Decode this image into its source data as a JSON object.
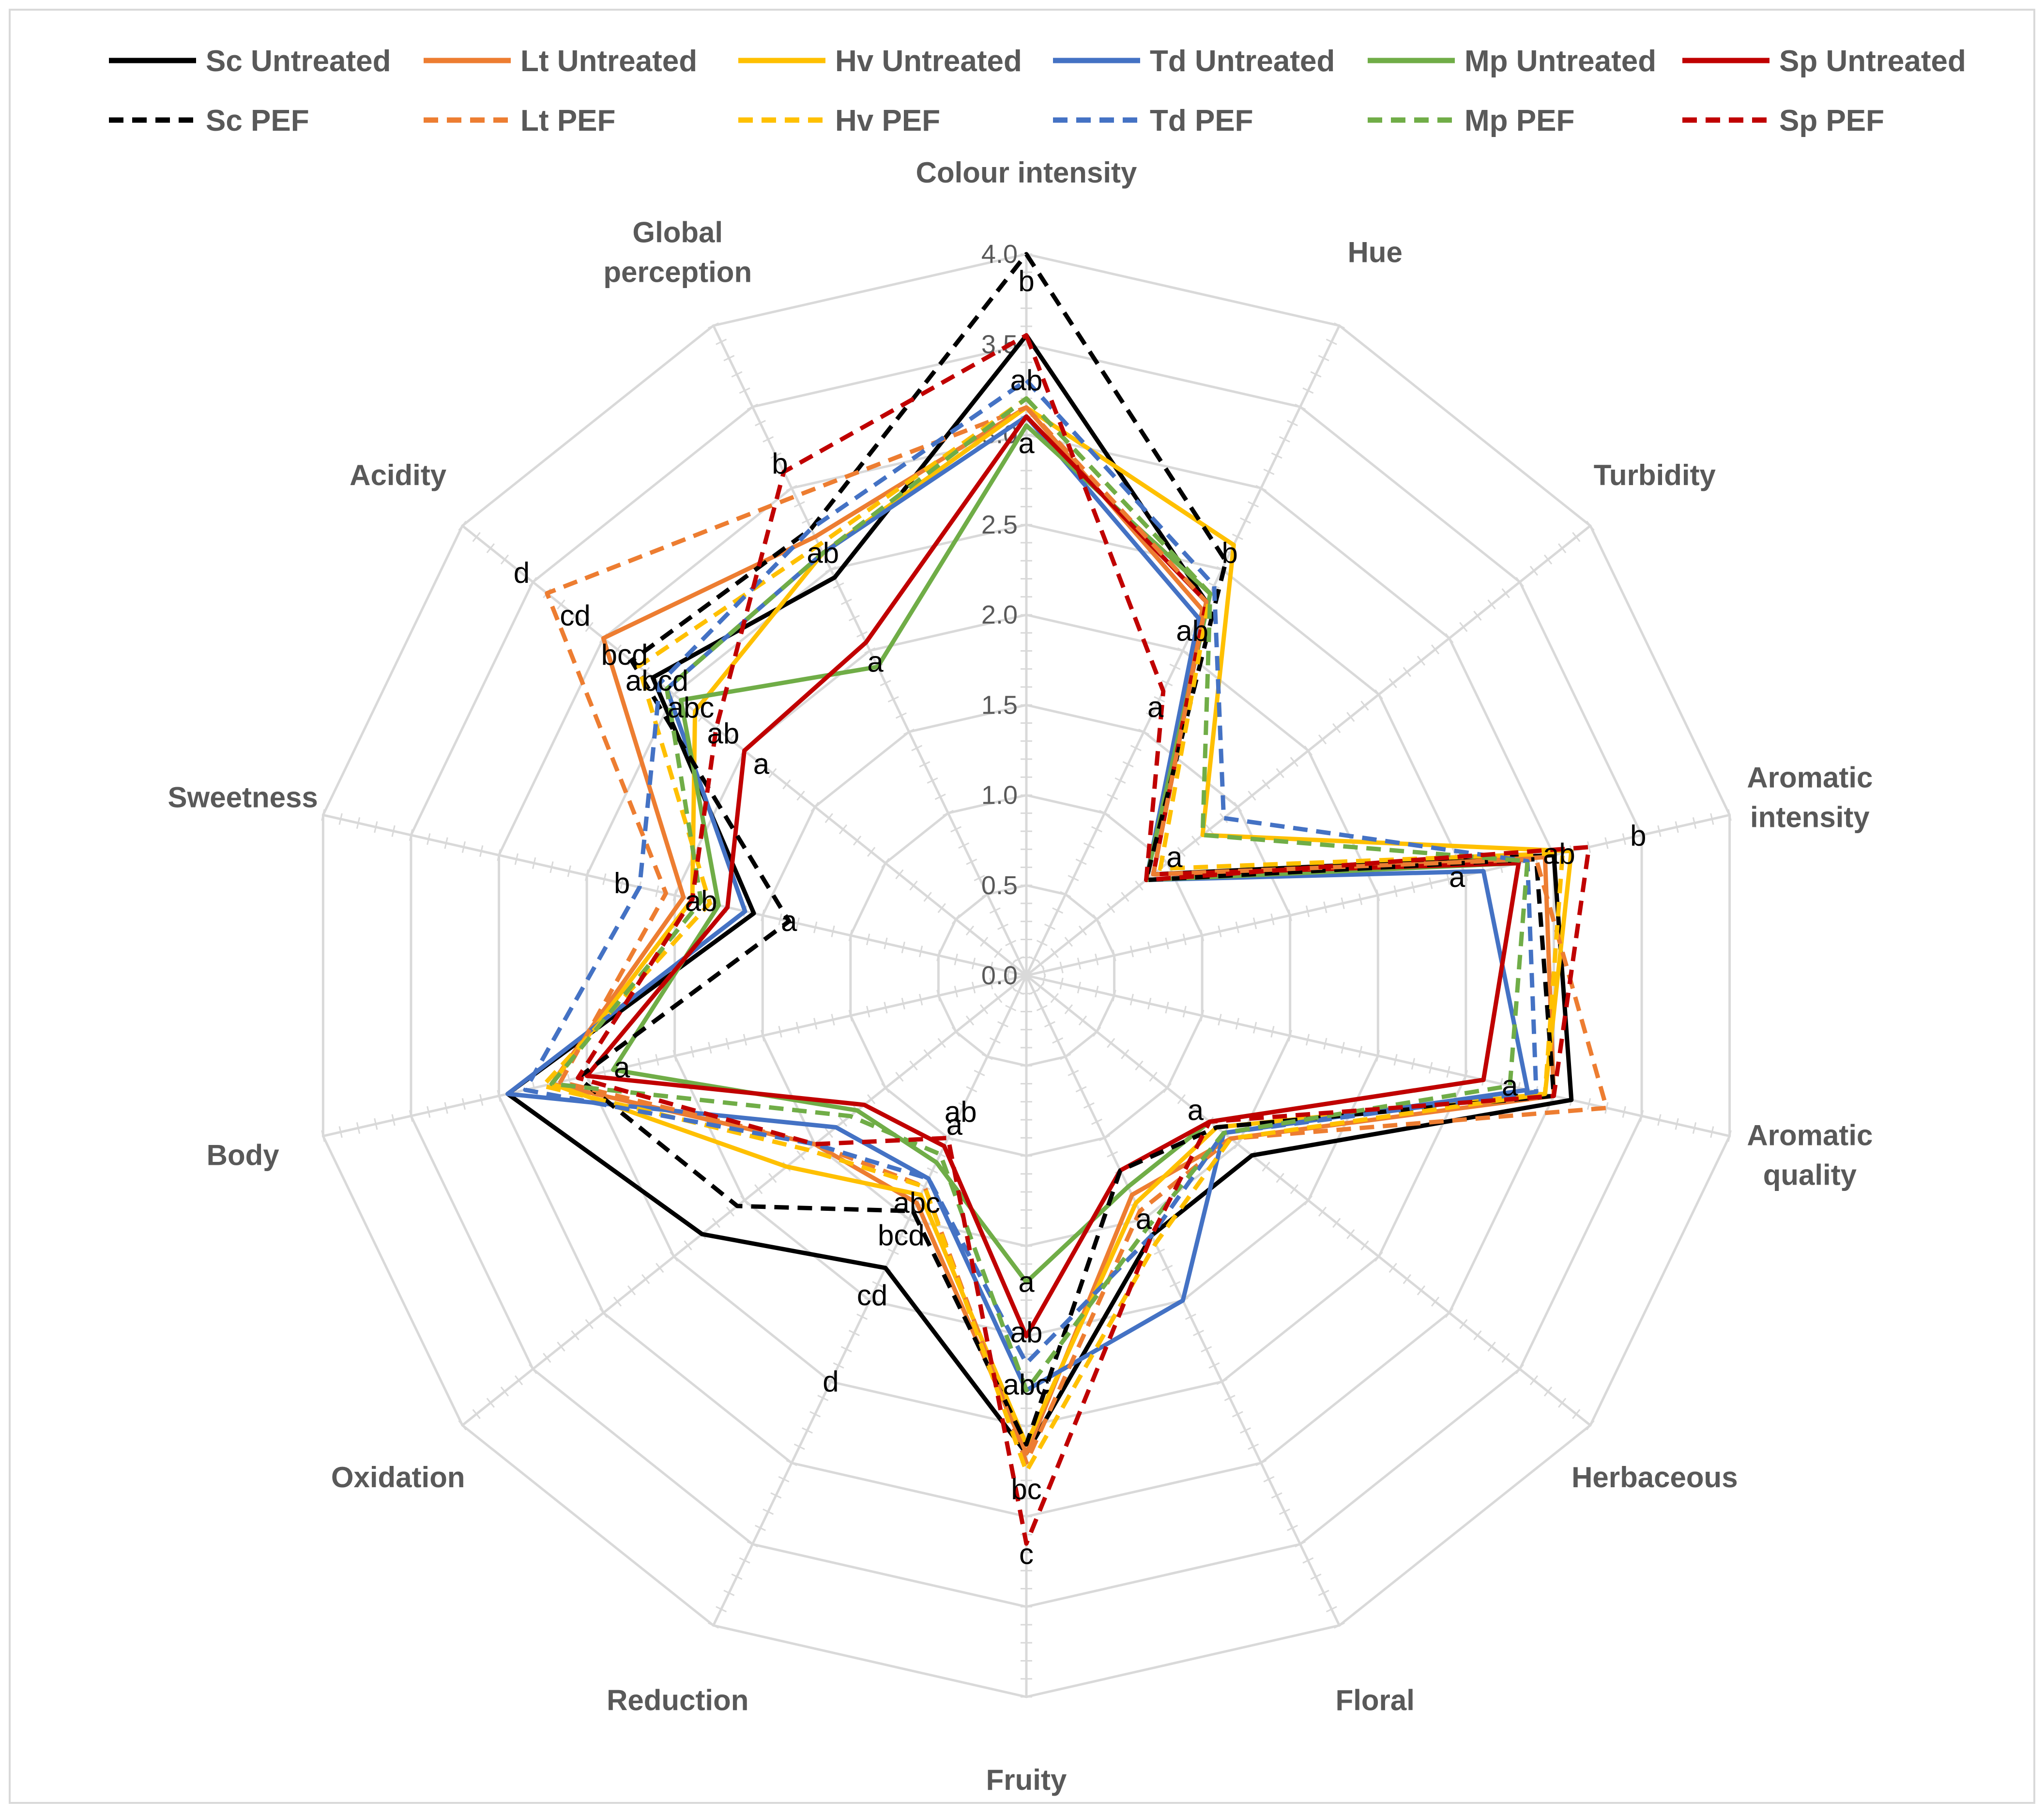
{
  "chart_data": {
    "type": "radar",
    "rlim": [
      0,
      4.0
    ],
    "ticks": [
      "0.0",
      "0.5",
      "1.0",
      "1.5",
      "2.0",
      "2.5",
      "3.0",
      "3.5",
      "4.0"
    ],
    "grid": true,
    "legend_position": "top",
    "axes": [
      "Colour intensity",
      "Hue",
      "Turbidity",
      "Aromatic intensity",
      "Aromatic quality",
      "Herbaceous",
      "Floral",
      "Fruity",
      "Reduction",
      "Oxidation",
      "Body",
      "Sweetness",
      "Acidity",
      "Global perception"
    ],
    "axes_lines": [
      [
        "Colour intensity"
      ],
      [
        "Hue"
      ],
      [
        "Turbidity"
      ],
      [
        "Aromatic",
        "intensity"
      ],
      [
        "Aromatic",
        "quality"
      ],
      [
        "Herbaceous"
      ],
      [
        "Floral"
      ],
      [
        "Fruity"
      ],
      [
        "Reduction"
      ],
      [
        "Oxidation"
      ],
      [
        "Body"
      ],
      [
        "Sweetness"
      ],
      [
        "Acidity"
      ],
      [
        "Global",
        "perception"
      ]
    ],
    "series": [
      {
        "name": "Sc Untreated",
        "color": "#000000",
        "dash": "solid",
        "values": [
          3.55,
          2.3,
          0.9,
          3.0,
          3.1,
          1.6,
          1.6,
          2.65,
          1.8,
          2.3,
          2.95,
          1.55,
          2.65,
          2.45
        ]
      },
      {
        "name": "Lt Untreated",
        "color": "#ED7D31",
        "dash": "solid",
        "values": [
          3.15,
          2.25,
          0.85,
          2.95,
          3.0,
          1.45,
          1.35,
          2.65,
          1.4,
          1.5,
          2.7,
          1.95,
          3.0,
          2.7
        ]
      },
      {
        "name": "Hv Untreated",
        "color": "#FFC000",
        "dash": "solid",
        "values": [
          3.15,
          2.65,
          1.25,
          3.1,
          2.95,
          1.35,
          1.4,
          2.6,
          1.35,
          1.7,
          2.7,
          1.9,
          2.35,
          2.6
        ]
      },
      {
        "name": "Td Untreated",
        "color": "#4472C4",
        "dash": "solid",
        "values": [
          3.1,
          2.2,
          0.85,
          2.6,
          2.85,
          1.4,
          2.0,
          2.3,
          1.25,
          1.35,
          2.95,
          1.6,
          2.55,
          2.6
        ]
      },
      {
        "name": "Mp Untreated",
        "color": "#70AD47",
        "dash": "solid",
        "values": [
          3.05,
          2.35,
          0.85,
          2.8,
          2.6,
          1.3,
          1.3,
          1.7,
          1.15,
          1.2,
          2.35,
          1.75,
          2.45,
          1.9
        ]
      },
      {
        "name": "Sp Untreated",
        "color": "#C00000",
        "dash": "solid",
        "values": [
          3.1,
          2.3,
          0.9,
          2.8,
          2.6,
          1.3,
          1.2,
          2.0,
          1.05,
          1.15,
          2.5,
          1.7,
          2.0,
          2.05
        ]
      },
      {
        "name": "Sc PEF",
        "color": "#000000",
        "dash": "dashed",
        "values": [
          4.0,
          2.55,
          0.85,
          2.9,
          3.0,
          1.35,
          1.2,
          2.6,
          1.45,
          2.05,
          2.55,
          1.35,
          2.8,
          2.75
        ]
      },
      {
        "name": "Lt PEF",
        "color": "#ED7D31",
        "dash": "dashed",
        "values": [
          3.15,
          2.3,
          0.9,
          2.9,
          3.3,
          1.45,
          1.45,
          2.7,
          1.3,
          1.5,
          2.65,
          2.05,
          3.4,
          2.95
        ]
      },
      {
        "name": "Hv PEF",
        "color": "#FFC000",
        "dash": "dashed",
        "values": [
          3.2,
          2.35,
          0.95,
          3.05,
          2.95,
          1.45,
          1.65,
          2.75,
          1.3,
          1.55,
          2.75,
          1.8,
          2.75,
          2.65
        ]
      },
      {
        "name": "Td PEF",
        "color": "#4472C4",
        "dash": "dashed",
        "values": [
          3.3,
          2.4,
          1.4,
          2.85,
          2.9,
          1.4,
          1.6,
          2.15,
          1.25,
          1.5,
          2.85,
          2.2,
          2.6,
          2.75
        ]
      },
      {
        "name": "Mp PEF",
        "color": "#70AD47",
        "dash": "dashed",
        "values": [
          3.2,
          2.35,
          1.25,
          2.85,
          2.75,
          1.4,
          1.55,
          2.3,
          1.1,
          1.25,
          2.7,
          1.85,
          2.55,
          2.6
        ]
      },
      {
        "name": "Sp PEF",
        "color": "#C00000",
        "dash": "dashed",
        "values": [
          3.55,
          1.75,
          0.85,
          3.2,
          3.0,
          1.3,
          1.6,
          3.15,
          1.0,
          1.5,
          2.55,
          1.9,
          2.2,
          3.1
        ]
      }
    ],
    "annotations": [
      {
        "axis": 0,
        "items": [
          {
            "text": "b",
            "r": 3.85
          },
          {
            "text": "ab",
            "r": 3.3
          },
          {
            "text": "a",
            "r": 2.95
          }
        ]
      },
      {
        "axis": 1,
        "items": [
          {
            "text": "b",
            "r": 2.6
          },
          {
            "text": "ab",
            "r": 2.12
          },
          {
            "text": "a",
            "r": 1.65
          }
        ]
      },
      {
        "axis": 2,
        "items": [
          {
            "text": "a",
            "r": 1.05
          }
        ]
      },
      {
        "axis": 3,
        "items": [
          {
            "text": "b",
            "r": 3.48
          },
          {
            "text": "ab",
            "r": 3.03
          },
          {
            "text": "a",
            "r": 2.45
          }
        ]
      },
      {
        "axis": 4,
        "items": [
          {
            "text": "a",
            "r": 2.75
          }
        ]
      },
      {
        "axis": 5,
        "items": [
          {
            "text": "a",
            "r": 1.2
          }
        ]
      },
      {
        "axis": 6,
        "items": [
          {
            "text": "a",
            "r": 1.5
          }
        ]
      },
      {
        "axis": 7,
        "items": [
          {
            "text": "a",
            "r": 1.7
          },
          {
            "text": "ab",
            "r": 1.98
          },
          {
            "text": "abc",
            "r": 2.27
          },
          {
            "text": "bc",
            "r": 2.85
          },
          {
            "text": "c",
            "r": 3.21
          }
        ]
      },
      {
        "axis": 8,
        "items": [
          {
            "text": "a",
            "r": 0.92
          },
          {
            "text": "ab",
            "r": 0.84
          },
          {
            "text": "abc",
            "r": 1.4
          },
          {
            "text": "bcd",
            "r": 1.6
          },
          {
            "text": "cd",
            "r": 1.97
          },
          {
            "text": "d",
            "r": 2.5
          }
        ]
      },
      {
        "axis": 10,
        "items": [
          {
            "text": "a",
            "r": 2.3
          }
        ]
      },
      {
        "axis": 11,
        "items": [
          {
            "text": "a",
            "r": 1.35
          },
          {
            "text": "ab",
            "r": 1.85
          },
          {
            "text": "b",
            "r": 2.3
          }
        ]
      },
      {
        "axis": 12,
        "items": [
          {
            "text": "d",
            "r": 3.58
          },
          {
            "text": "cd",
            "r": 3.2
          },
          {
            "text": "bcd",
            "r": 2.85
          },
          {
            "text": "abcd",
            "r": 2.62
          },
          {
            "text": "abc",
            "r": 2.38
          },
          {
            "text": "ab",
            "r": 2.15
          },
          {
            "text": "a",
            "r": 1.88
          }
        ]
      },
      {
        "axis": 13,
        "items": [
          {
            "text": "b",
            "r": 3.15
          },
          {
            "text": "ab",
            "r": 2.6
          },
          {
            "text": "a",
            "r": 1.93
          }
        ]
      }
    ]
  }
}
